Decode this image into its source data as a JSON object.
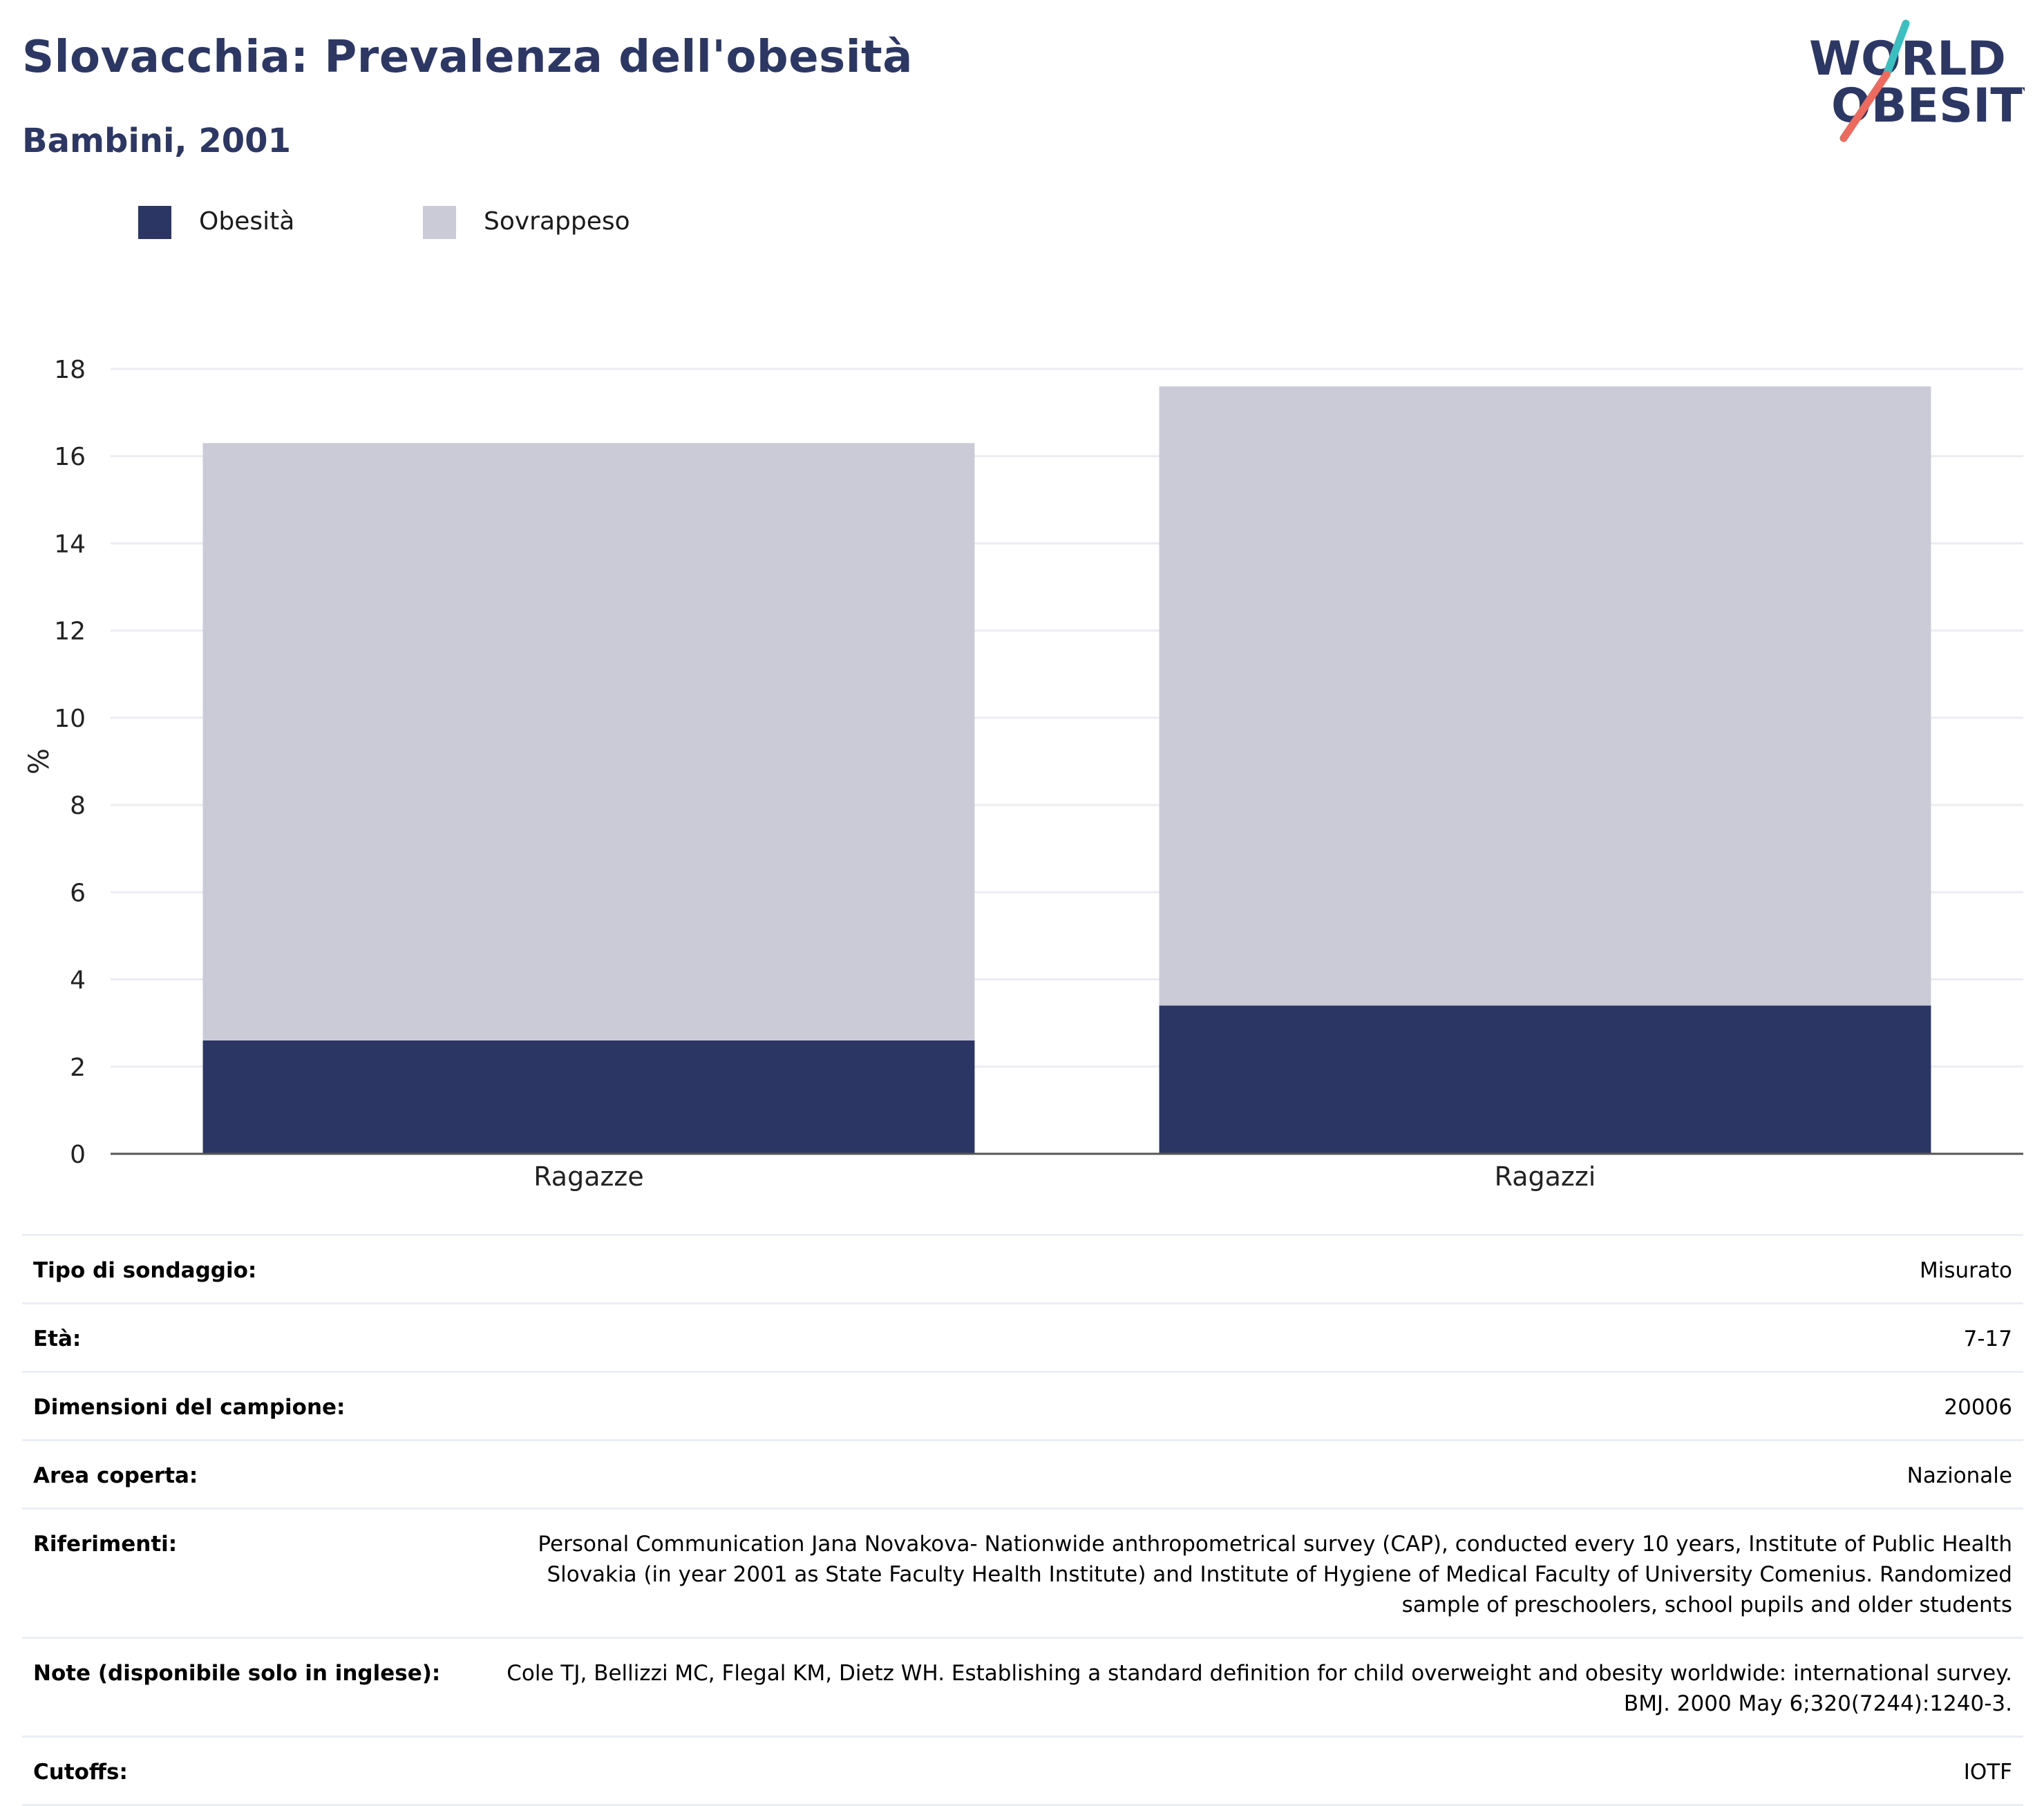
{
  "header": {
    "title": "Slovacchia: Prevalenza dell'obesità",
    "subtitle": "Bambini, 2001"
  },
  "logo": {
    "line1": "WORLD",
    "line2": "OBESITY"
  },
  "colors": {
    "title": "#2c3764",
    "obesity": "#2b3664",
    "overweight": "#cacbd7",
    "grid": "#ececf2",
    "axis": "#555555",
    "logo_teal": "#3bbfc1",
    "logo_coral": "#ec6a5e"
  },
  "legend": [
    {
      "label": "Obesità",
      "color": "#2b3664"
    },
    {
      "label": "Sovrappeso",
      "color": "#cacbd7"
    }
  ],
  "chart_data": {
    "type": "bar",
    "stacked": true,
    "categories": [
      "Ragazze",
      "Ragazzi"
    ],
    "series": [
      {
        "name": "Obesità",
        "values": [
          2.6,
          3.4
        ]
      },
      {
        "name": "Sovrappeso",
        "values": [
          13.7,
          14.2
        ]
      }
    ],
    "totals": [
      16.3,
      17.6
    ],
    "title": "Slovacchia: Prevalenza dell'obesità",
    "subtitle": "Bambini, 2001",
    "xlabel": "",
    "ylabel": "%",
    "ylim": [
      0,
      18
    ],
    "yticks": [
      0,
      2,
      4,
      6,
      8,
      10,
      12,
      14,
      16,
      18
    ],
    "grid": true,
    "legend_position": "top-left"
  },
  "info": [
    {
      "label": "Tipo di sondaggio:",
      "value": "Misurato"
    },
    {
      "label": "Età:",
      "value": "7-17"
    },
    {
      "label": "Dimensioni del campione:",
      "value": "20006"
    },
    {
      "label": "Area coperta:",
      "value": "Nazionale"
    },
    {
      "label": "Riferimenti:",
      "value": "Personal Communication Jana Novakova- Nationwide anthropometrical survey (CAP), conducted every 10 years, Institute of Public Health Slovakia (in year 2001 as State Faculty Health Institute) and Institute of Hygiene of Medical Faculty of University Comenius. Randomized sample of preschoolers, school pupils and older students"
    },
    {
      "label": "Note (disponibile solo in inglese):",
      "value": "Cole TJ, Bellizzi MC, Flegal KM, Dietz WH. Establishing a standard definition for child overweight and obesity worldwide: international survey. BMJ. 2000 May 6;320(7244):1240-3."
    },
    {
      "label": "Cutoffs:",
      "value": "IOTF"
    }
  ]
}
